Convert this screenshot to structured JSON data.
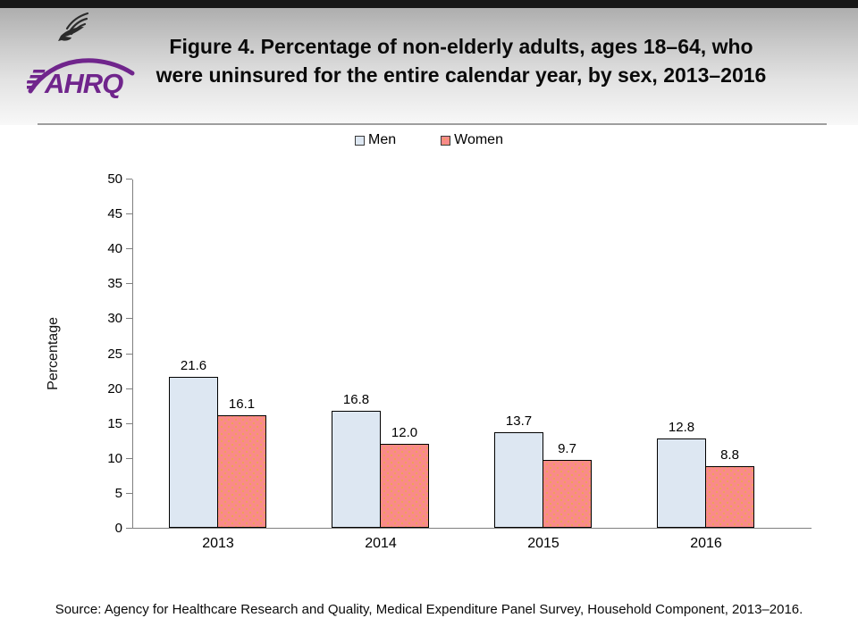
{
  "header": {
    "logo": {
      "org": "AHRQ",
      "eagle_icon": "hhs-eagle-icon",
      "purple": "#70258c",
      "eagle_color": "#2b2b2b"
    },
    "title_lines": [
      "Figure 4. Percentage of non-elderly adults, ages 18–64, who",
      "were uninsured for the entire calendar year, by sex, 2013–2016"
    ],
    "topbar_color": "#171717"
  },
  "chart_data": {
    "type": "bar",
    "title": "",
    "categories": [
      "2013",
      "2014",
      "2015",
      "2016"
    ],
    "series": [
      {
        "name": "Men",
        "color": "#dde7f2",
        "pattern": "solid",
        "values": [
          21.6,
          16.8,
          13.7,
          12.8
        ],
        "labels": [
          "21.6",
          "16.8",
          "13.7",
          "12.8"
        ]
      },
      {
        "name": "Women",
        "color": "#fa8a8a",
        "pattern": "dots",
        "dot_color": "#eda156",
        "values": [
          16.1,
          12.0,
          9.7,
          8.8
        ],
        "labels": [
          "16.1",
          "12.0",
          "9.7",
          "8.8"
        ]
      }
    ],
    "xlabel": "",
    "ylabel": "Percentage",
    "ylim": [
      0,
      50
    ],
    "yticks": [
      0,
      5,
      10,
      15,
      20,
      25,
      30,
      35,
      40,
      45,
      50
    ],
    "grid": false,
    "legend_position": "top-center",
    "bar_border_color": "#000000",
    "axis_color": "#7f7f7f"
  },
  "source": {
    "text": "Source: Agency for Healthcare Research and Quality, Medical Expenditure Panel Survey, Household Component, 2013–2016."
  }
}
